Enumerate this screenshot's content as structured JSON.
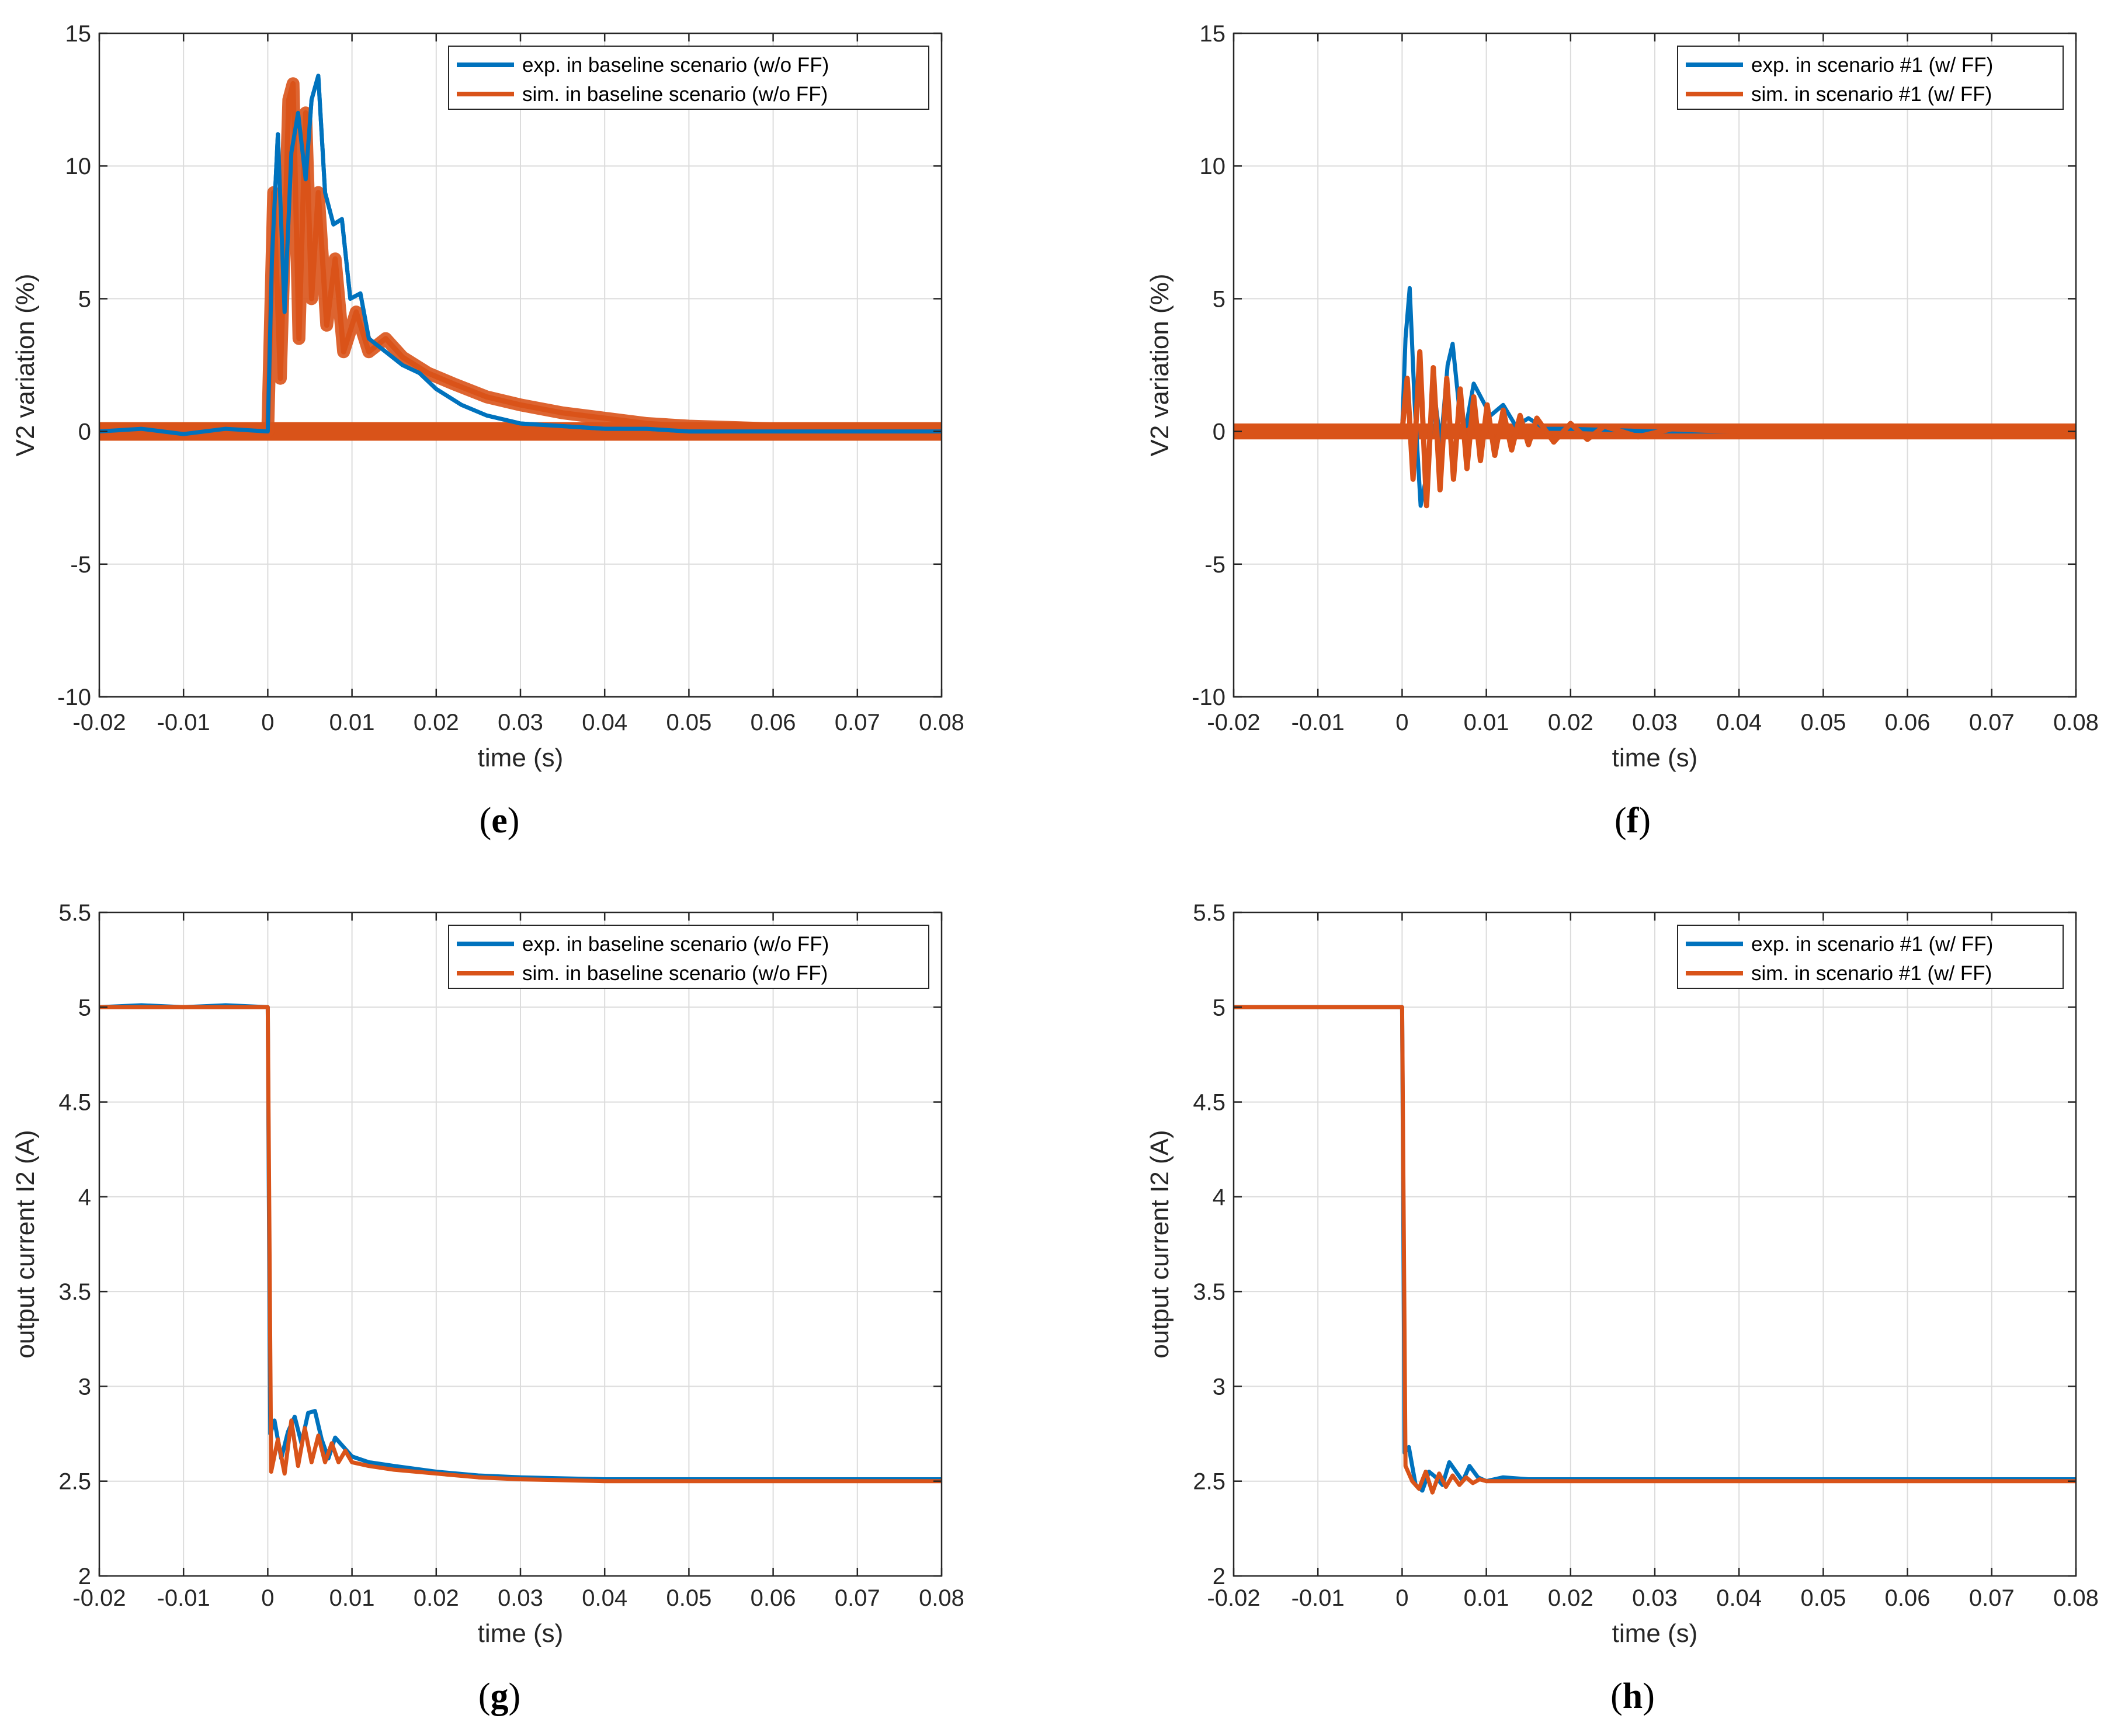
{
  "figure": {
    "captions": [
      "e",
      "f",
      "g",
      "h"
    ]
  },
  "colors": {
    "exp": "#0072BD",
    "sim": "#D95319",
    "grid": "#dcdcdc",
    "axis": "#262626"
  },
  "chart_data": [
    {
      "panel": "e",
      "type": "line",
      "xlabel": "time (s)",
      "ylabel": "V2 variation (%)",
      "xlim": [
        -0.02,
        0.08
      ],
      "ylim": [
        -10,
        15
      ],
      "xticks": [
        -0.02,
        -0.01,
        0,
        0.01,
        0.02,
        0.03,
        0.04,
        0.05,
        0.06,
        0.07,
        0.08
      ],
      "xtick_labels": [
        "-0.02",
        "-0.01",
        "0",
        "0.01",
        "0.02",
        "0.03",
        "0.04",
        "0.05",
        "0.06",
        "0.07",
        "0.08"
      ],
      "yticks": [
        -10,
        -5,
        0,
        5,
        10,
        15
      ],
      "ytick_labels": [
        "-10",
        "-5",
        "0",
        "5",
        "10",
        "15"
      ],
      "grid": true,
      "legend": "top-right",
      "series": [
        {
          "name": "exp. in baseline scenario (w/o FF)",
          "color": "#0072BD",
          "x": [
            -0.02,
            -0.015,
            -0.01,
            -0.005,
            0,
            0.0005,
            0.0012,
            0.002,
            0.0028,
            0.0036,
            0.0045,
            0.0052,
            0.006,
            0.0068,
            0.0078,
            0.0088,
            0.0098,
            0.011,
            0.012,
            0.014,
            0.016,
            0.018,
            0.02,
            0.023,
            0.026,
            0.03,
            0.035,
            0.04,
            0.045,
            0.05,
            0.06,
            0.07,
            0.08
          ],
          "y": [
            0,
            0.1,
            -0.1,
            0.1,
            0,
            6.5,
            11.2,
            4.5,
            10.5,
            12.0,
            9.5,
            12.5,
            13.4,
            9.0,
            7.8,
            8.0,
            5.0,
            5.2,
            3.5,
            3.0,
            2.5,
            2.2,
            1.6,
            1.0,
            0.6,
            0.3,
            0.2,
            0.1,
            0.1,
            0,
            0,
            0,
            0
          ]
        },
        {
          "name": "sim. in baseline scenario (w/o FF)",
          "color": "#D95319",
          "x": [
            -0.02,
            -0.01,
            0,
            0.0007,
            0.0015,
            0.0025,
            0.003,
            0.0037,
            0.0045,
            0.0052,
            0.006,
            0.007,
            0.008,
            0.009,
            0.0105,
            0.012,
            0.014,
            0.016,
            0.019,
            0.022,
            0.026,
            0.03,
            0.035,
            0.04,
            0.045,
            0.05,
            0.06,
            0.07,
            0.08
          ],
          "y": [
            0,
            0,
            0,
            9.0,
            2.0,
            12.5,
            13.1,
            3.5,
            12.0,
            5.0,
            9.0,
            4.0,
            6.5,
            3.0,
            4.5,
            3.0,
            3.5,
            2.8,
            2.2,
            1.8,
            1.3,
            1.0,
            0.7,
            0.5,
            0.3,
            0.2,
            0.1,
            0,
            0
          ],
          "band": 0.35
        }
      ]
    },
    {
      "panel": "f",
      "type": "line",
      "xlabel": "time (s)",
      "ylabel": "V2 variation (%)",
      "xlim": [
        -0.02,
        0.08
      ],
      "ylim": [
        -10,
        15
      ],
      "xticks": [
        -0.02,
        -0.01,
        0,
        0.01,
        0.02,
        0.03,
        0.04,
        0.05,
        0.06,
        0.07,
        0.08
      ],
      "xtick_labels": [
        "-0.02",
        "-0.01",
        "0",
        "0.01",
        "0.02",
        "0.03",
        "0.04",
        "0.05",
        "0.06",
        "0.07",
        "0.08"
      ],
      "yticks": [
        -10,
        -5,
        0,
        5,
        10,
        15
      ],
      "ytick_labels": [
        "-10",
        "-5",
        "0",
        "5",
        "10",
        "15"
      ],
      "grid": true,
      "legend": "top-right",
      "series": [
        {
          "name": "exp. in scenario #1 (w/ FF)",
          "color": "#0072BD",
          "x": [
            -0.02,
            -0.01,
            0,
            0.0004,
            0.0009,
            0.0015,
            0.0022,
            0.003,
            0.0038,
            0.0046,
            0.0054,
            0.006,
            0.0068,
            0.0076,
            0.0085,
            0.0095,
            0.0105,
            0.012,
            0.0135,
            0.015,
            0.017,
            0.02,
            0.03,
            0.04,
            0.05,
            0.06,
            0.07,
            0.08
          ],
          "y": [
            0,
            0,
            0,
            3.5,
            5.4,
            1.0,
            -2.8,
            -1.5,
            1.5,
            -0.5,
            2.5,
            3.3,
            0.8,
            0.2,
            1.8,
            1.2,
            0.6,
            1.0,
            0.2,
            0.5,
            0.1,
            0.1,
            0,
            0,
            0,
            0,
            0,
            0
          ]
        },
        {
          "name": "sim. in scenario #1 (w/ FF)",
          "color": "#D95319",
          "x": [
            -0.02,
            -0.01,
            0,
            0.0006,
            0.0013,
            0.0021,
            0.0029,
            0.0037,
            0.0045,
            0.0053,
            0.0061,
            0.0069,
            0.0077,
            0.0085,
            0.0093,
            0.0101,
            0.011,
            0.012,
            0.013,
            0.014,
            0.015,
            0.016,
            0.018,
            0.02,
            0.022,
            0.024,
            0.028,
            0.032,
            0.04,
            0.05,
            0.06,
            0.07,
            0.08
          ],
          "y": [
            0,
            0,
            0,
            2.0,
            -1.8,
            3.0,
            -2.8,
            2.4,
            -2.2,
            2.0,
            -1.8,
            1.6,
            -1.4,
            1.3,
            -1.1,
            1.0,
            -0.9,
            0.8,
            -0.7,
            0.6,
            -0.5,
            0.5,
            -0.4,
            0.3,
            -0.3,
            0.2,
            -0.2,
            0.1,
            0,
            0,
            0,
            0,
            0
          ],
          "band": 0.3
        }
      ]
    },
    {
      "panel": "g",
      "type": "line",
      "xlabel": "time (s)",
      "ylabel": "output current I2 (A)",
      "xlim": [
        -0.02,
        0.08
      ],
      "ylim": [
        2,
        5.5
      ],
      "xticks": [
        -0.02,
        -0.01,
        0,
        0.01,
        0.02,
        0.03,
        0.04,
        0.05,
        0.06,
        0.07,
        0.08
      ],
      "xtick_labels": [
        "-0.02",
        "-0.01",
        "0",
        "0.01",
        "0.02",
        "0.03",
        "0.04",
        "0.05",
        "0.06",
        "0.07",
        "0.08"
      ],
      "yticks": [
        2,
        2.5,
        3,
        3.5,
        4,
        4.5,
        5,
        5.5
      ],
      "ytick_labels": [
        "2",
        "2.5",
        "3",
        "3.5",
        "4",
        "4.5",
        "5",
        "5.5"
      ],
      "grid": true,
      "legend": "top-right",
      "series": [
        {
          "name": "exp. in baseline scenario (w/o FF)",
          "color": "#0072BD",
          "x": [
            -0.02,
            -0.015,
            -0.01,
            -0.005,
            0,
            0.0003,
            0.0008,
            0.0016,
            0.0024,
            0.0032,
            0.004,
            0.0048,
            0.0056,
            0.0064,
            0.0072,
            0.008,
            0.009,
            0.01,
            0.012,
            0.015,
            0.02,
            0.025,
            0.03,
            0.04,
            0.05,
            0.06,
            0.07,
            0.08
          ],
          "y": [
            5.0,
            5.01,
            5.0,
            5.01,
            5.0,
            2.75,
            2.82,
            2.62,
            2.76,
            2.84,
            2.7,
            2.86,
            2.87,
            2.72,
            2.62,
            2.73,
            2.68,
            2.63,
            2.6,
            2.58,
            2.55,
            2.53,
            2.52,
            2.51,
            2.51,
            2.51,
            2.51,
            2.51
          ]
        },
        {
          "name": "sim. in baseline scenario (w/o FF)",
          "color": "#D95319",
          "x": [
            -0.02,
            -0.01,
            0,
            0.0004,
            0.0012,
            0.002,
            0.0028,
            0.0036,
            0.0044,
            0.0052,
            0.006,
            0.0068,
            0.0076,
            0.0084,
            0.0092,
            0.01,
            0.012,
            0.015,
            0.02,
            0.025,
            0.03,
            0.04,
            0.05,
            0.06,
            0.07,
            0.08
          ],
          "y": [
            5.0,
            5.0,
            5.0,
            2.55,
            2.72,
            2.54,
            2.82,
            2.58,
            2.78,
            2.6,
            2.74,
            2.6,
            2.7,
            2.6,
            2.66,
            2.6,
            2.58,
            2.56,
            2.54,
            2.52,
            2.51,
            2.5,
            2.5,
            2.5,
            2.5,
            2.5
          ]
        }
      ]
    },
    {
      "panel": "h",
      "type": "line",
      "xlabel": "time (s)",
      "ylabel": "output current I2 (A)",
      "xlim": [
        -0.02,
        0.08
      ],
      "ylim": [
        2,
        5.5
      ],
      "xticks": [
        -0.02,
        -0.01,
        0,
        0.01,
        0.02,
        0.03,
        0.04,
        0.05,
        0.06,
        0.07,
        0.08
      ],
      "xtick_labels": [
        "-0.02",
        "-0.01",
        "0",
        "0.01",
        "0.02",
        "0.03",
        "0.04",
        "0.05",
        "0.06",
        "0.07",
        "0.08"
      ],
      "yticks": [
        2,
        2.5,
        3,
        3.5,
        4,
        4.5,
        5,
        5.5
      ],
      "ytick_labels": [
        "2",
        "2.5",
        "3",
        "3.5",
        "4",
        "4.5",
        "5",
        "5.5"
      ],
      "grid": true,
      "legend": "top-right",
      "series": [
        {
          "name": "exp. in scenario #1 (w/ FF)",
          "color": "#0072BD",
          "x": [
            -0.02,
            -0.01,
            0,
            0.0003,
            0.0008,
            0.0016,
            0.0024,
            0.0032,
            0.004,
            0.0048,
            0.0056,
            0.0064,
            0.0072,
            0.008,
            0.009,
            0.01,
            0.012,
            0.015,
            0.02,
            0.03,
            0.04,
            0.05,
            0.06,
            0.07,
            0.08
          ],
          "y": [
            5.0,
            5.0,
            5.0,
            2.65,
            2.68,
            2.48,
            2.45,
            2.55,
            2.52,
            2.48,
            2.6,
            2.55,
            2.5,
            2.58,
            2.52,
            2.5,
            2.52,
            2.51,
            2.51,
            2.51,
            2.51,
            2.51,
            2.51,
            2.51,
            2.51
          ]
        },
        {
          "name": "sim. in scenario #1 (w/ FF)",
          "color": "#D95319",
          "x": [
            -0.02,
            -0.01,
            0,
            0.0004,
            0.0012,
            0.002,
            0.0028,
            0.0036,
            0.0044,
            0.0052,
            0.006,
            0.0068,
            0.0076,
            0.0084,
            0.0092,
            0.01,
            0.012,
            0.015,
            0.02,
            0.03,
            0.04,
            0.05,
            0.06,
            0.07,
            0.08
          ],
          "y": [
            5.0,
            5.0,
            5.0,
            2.58,
            2.5,
            2.46,
            2.55,
            2.44,
            2.54,
            2.47,
            2.53,
            2.48,
            2.52,
            2.49,
            2.51,
            2.5,
            2.5,
            2.5,
            2.5,
            2.5,
            2.5,
            2.5,
            2.5,
            2.5,
            2.5
          ]
        }
      ]
    }
  ]
}
